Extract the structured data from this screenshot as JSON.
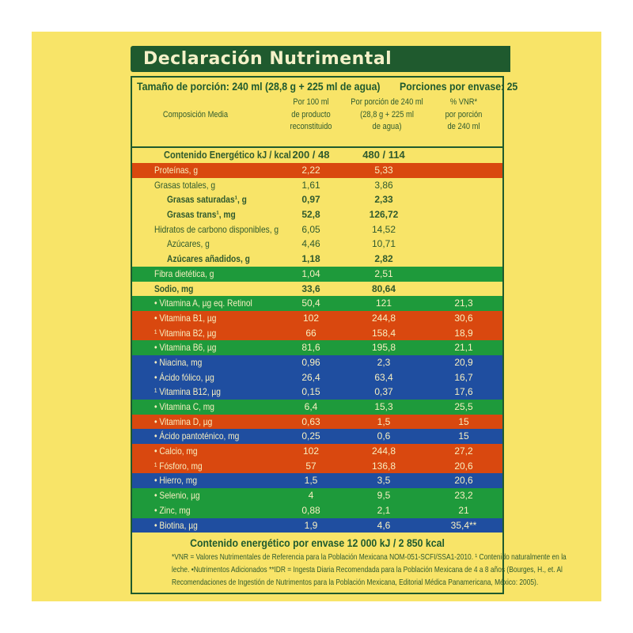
{
  "title": "Declaración Nutrimental",
  "serving_size": "Tamaño de porción: 240 ml (28,8 g + 225 ml de agua)",
  "servings_per_container": "Porciones por envase: 25",
  "columns": {
    "label": "Composición Media",
    "c1": "Por 100 ml\nde producto\nreconstituido",
    "c2": "Por porción de 240 ml\n(28,8 g + 225 ml\nde agua)",
    "c3": "% VNR*\npor porción\nde 240 ml"
  },
  "energy": {
    "label": "Contenido Energético kJ / kcal",
    "c1": "200 / 48",
    "c2": "480 / 114",
    "c3": ""
  },
  "colors": {
    "yellow": "#f8e468",
    "green": "#1e9a3b",
    "orange": "#d9480f",
    "blue": "#1f4ea0",
    "dark_green": "#1f5a2e"
  },
  "rows": [
    {
      "label": "Proteínas, g",
      "c1": "2,22",
      "c2": "5,33",
      "c3": "",
      "style": "o"
    },
    {
      "label": "Grasas totales, g",
      "c1": "1,61",
      "c2": "3,86",
      "c3": "",
      "style": "y"
    },
    {
      "label": "Grasas saturadas¹, g",
      "c1": "0,97",
      "c2": "2,33",
      "c3": "",
      "style": "y b ind"
    },
    {
      "label": "Grasas trans¹, mg",
      "c1": "52,8",
      "c2": "126,72",
      "c3": "",
      "style": "y b ind"
    },
    {
      "label": "Hidratos de carbono disponibles, g",
      "c1": "6,05",
      "c2": "14,52",
      "c3": "",
      "style": "y"
    },
    {
      "label": "Azúcares, g",
      "c1": "4,46",
      "c2": "10,71",
      "c3": "",
      "style": "y ind"
    },
    {
      "label": "Azúcares añadidos, g",
      "c1": "1,18",
      "c2": "2,82",
      "c3": "",
      "style": "y b ind"
    },
    {
      "label": "Fibra dietética, g",
      "c1": "1,04",
      "c2": "2,51",
      "c3": "",
      "style": "g"
    },
    {
      "label": "Sodio, mg",
      "c1": "33,6",
      "c2": "80,64",
      "c3": "",
      "style": "y b"
    },
    {
      "label": "• Vitamina A, µg eq. Retinol",
      "c1": "50,4",
      "c2": "121",
      "c3": "21,3",
      "style": "g"
    },
    {
      "label": "• Vitamina B1,  µg",
      "c1": "102",
      "c2": "244,8",
      "c3": "30,6",
      "style": "o"
    },
    {
      "label": "¹ Vitamina B2,  µg",
      "c1": "66",
      "c2": "158,4",
      "c3": "18,9",
      "style": "o"
    },
    {
      "label": "• Vitamina B6,  µg",
      "c1": "81,6",
      "c2": "195,8",
      "c3": "21,1",
      "style": "g"
    },
    {
      "label": "• Niacina, mg",
      "c1": "0,96",
      "c2": "2,3",
      "c3": "20,9",
      "style": "bl"
    },
    {
      "label": "• Ácido fólico,  µg",
      "c1": "26,4",
      "c2": "63,4",
      "c3": "16,7",
      "style": "bl"
    },
    {
      "label": "¹ Vitamina B12,  µg",
      "c1": "0,15",
      "c2": "0,37",
      "c3": "17,6",
      "style": "bl"
    },
    {
      "label": "• Vitamina C,  mg",
      "c1": "6,4",
      "c2": "15,3",
      "c3": "25,5",
      "style": "g"
    },
    {
      "label": "• Vitamina D,  µg",
      "c1": "0,63",
      "c2": "1,5",
      "c3": "15",
      "style": "o"
    },
    {
      "label": "• Ácido pantoténico,  mg",
      "c1": "0,25",
      "c2": "0,6",
      "c3": "15",
      "style": "bl"
    },
    {
      "label": "• Calcio, mg",
      "c1": "102",
      "c2": "244,8",
      "c3": "27,2",
      "style": "o"
    },
    {
      "label": "¹ Fósforo, mg",
      "c1": "57",
      "c2": "136,8",
      "c3": "20,6",
      "style": "o"
    },
    {
      "label": "• Hierro, mg",
      "c1": "1,5",
      "c2": "3,5",
      "c3": "20,6",
      "style": "bl"
    },
    {
      "label": "• Selenio,  µg",
      "c1": "4",
      "c2": "9,5",
      "c3": "23,2",
      "style": "g"
    },
    {
      "label": "• Zinc, mg",
      "c1": "0,88",
      "c2": "2,1",
      "c3": "21",
      "style": "g"
    },
    {
      "label": "• Biotina,  µg",
      "c1": "1,9",
      "c2": "4,6",
      "c3": "35,4**",
      "style": "bl"
    }
  ],
  "total_energy": "Contenido energético por envase 12 000 kJ / 2 850 kcal",
  "footnotes": [
    "*VNR = Valores Nutrimentales de Referencia para la Población Mexicana NOM-051-SCFI/SSA1-2010. ¹ Contenido naturalmente en la",
    "leche. •Nutrimentos Adicionados    **IDR = Ingesta Diaria Recomendada para la Población Mexicana de 4 a 8 años (Bourges, H., et. Al",
    "Recomendaciones de Ingestión de Nutrimentos para la Población Mexicana, Editorial Médica Panamericana, México: 2005)."
  ]
}
